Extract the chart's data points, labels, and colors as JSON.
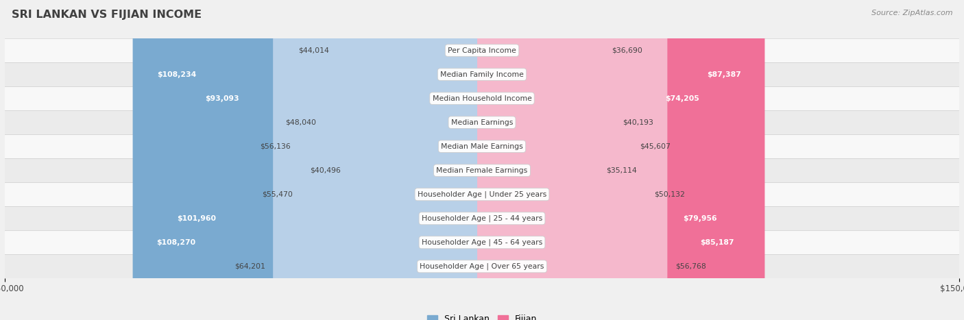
{
  "title": "SRI LANKAN VS FIJIAN INCOME",
  "source": "Source: ZipAtlas.com",
  "categories": [
    "Per Capita Income",
    "Median Family Income",
    "Median Household Income",
    "Median Earnings",
    "Median Male Earnings",
    "Median Female Earnings",
    "Householder Age | Under 25 years",
    "Householder Age | 25 - 44 years",
    "Householder Age | 45 - 64 years",
    "Householder Age | Over 65 years"
  ],
  "sri_lankan": [
    44014,
    108234,
    93093,
    48040,
    56136,
    40496,
    55470,
    101960,
    108270,
    64201
  ],
  "fijian": [
    36690,
    87387,
    74205,
    40193,
    45607,
    35114,
    50132,
    79956,
    85187,
    56768
  ],
  "sri_lankan_labels": [
    "$44,014",
    "$108,234",
    "$93,093",
    "$48,040",
    "$56,136",
    "$40,496",
    "$55,470",
    "$101,960",
    "$108,270",
    "$64,201"
  ],
  "fijian_labels": [
    "$36,690",
    "$87,387",
    "$74,205",
    "$40,193",
    "$45,607",
    "$35,114",
    "$50,132",
    "$79,956",
    "$85,187",
    "$56,768"
  ],
  "max_value": 150000,
  "blue_light": "#b8d0e8",
  "pink_light": "#f5b8cc",
  "blue_solid": "#7aaad0",
  "pink_solid": "#f07098",
  "bg_color": "#f0f0f0",
  "row_bg_light": "#f8f8f8",
  "row_bg_dark": "#ebebeb",
  "title_color": "#404040",
  "text_dark": "#444444",
  "text_inside": "#ffffff",
  "source_color": "#888888",
  "threshold_inside": 65000,
  "legend_blue": "#7aaad0",
  "legend_pink": "#f07098"
}
